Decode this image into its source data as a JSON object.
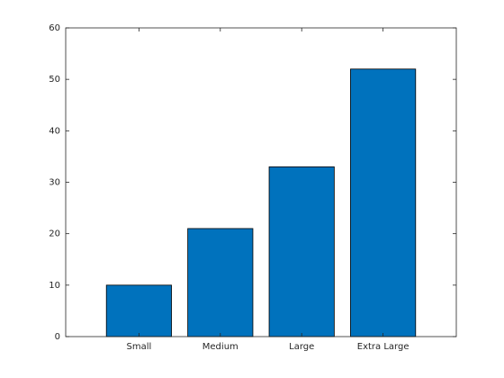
{
  "chart_data": {
    "type": "bar",
    "categories": [
      "Small",
      "Medium",
      "Large",
      "Extra Large"
    ],
    "values": [
      10,
      21,
      33,
      52
    ],
    "color": "#0072bd",
    "ylim": [
      0,
      60
    ],
    "yticks": [
      0,
      10,
      20,
      30,
      40,
      50,
      60
    ],
    "grid": false
  }
}
